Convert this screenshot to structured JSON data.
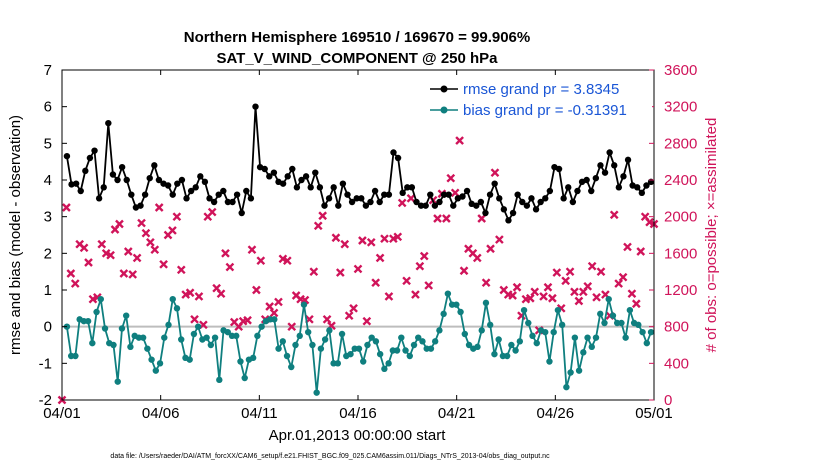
{
  "chart_data": {
    "type": "line",
    "title": "Northern Hemisphere 169510 / 169670 = 99.906%",
    "subtitle": "SAT_V_WIND_COMPONENT @ 250 hPa",
    "xlabel": "Apr.01,2013 00:00:00 start",
    "ylabel_left": "rmse and bias (model - observation)",
    "ylabel_right": "# of obs: o=possible; ×=assimilated",
    "ylim_left": [
      -2,
      7
    ],
    "ylim_right": [
      0,
      3600
    ],
    "xlim": [
      0,
      30
    ],
    "x_ticks": [
      {
        "x": 0,
        "label": "04/01"
      },
      {
        "x": 5,
        "label": "04/06"
      },
      {
        "x": 10,
        "label": "04/11"
      },
      {
        "x": 15,
        "label": "04/16"
      },
      {
        "x": 20,
        "label": "04/21"
      },
      {
        "x": 25,
        "label": "04/26"
      },
      {
        "x": 30,
        "label": "05/01"
      }
    ],
    "y_ticks_left": [
      "-2",
      "-1",
      "0",
      "1",
      "2",
      "3",
      "4",
      "5",
      "6",
      "7"
    ],
    "y_ticks_right": [
      "0",
      "400",
      "800",
      "1200",
      "1600",
      "2000",
      "2400",
      "2800",
      "3200",
      "3600"
    ],
    "footnote": "data file: /Users/raeder/DAI/ATM_forcXX/CAM6_setup/f.e21.FHIST_BGC.f09_025.CAM6assim.011/Diags_NTrS_2013-04/obs_diag_output.nc",
    "colors": {
      "rmse": "#000000",
      "bias": "#0f7f7f",
      "obs": "#d0145a",
      "zero": "#bdbdbd",
      "legend_text": "#1a56d6"
    },
    "series": [
      {
        "name": "rmse",
        "legend": "rmse grand pr = 3.8345",
        "marker": "circle",
        "values": [
          4.65,
          3.88,
          3.9,
          3.7,
          4.25,
          4.6,
          4.8,
          3.5,
          3.8,
          5.55,
          4.15,
          4.0,
          4.35,
          4.0,
          3.6,
          3.25,
          3.3,
          3.6,
          4.05,
          4.4,
          4.0,
          3.9,
          3.85,
          3.6,
          3.9,
          4.0,
          3.5,
          3.7,
          3.8,
          4.1,
          3.95,
          3.5,
          3.4,
          3.6,
          3.7,
          3.4,
          3.4,
          3.6,
          3.1,
          3.7,
          3.5,
          6.0,
          4.35,
          4.3,
          4.1,
          4.2,
          3.95,
          3.9,
          4.1,
          4.3,
          3.8,
          4.0,
          4.1,
          3.8,
          4.2,
          3.8,
          3.3,
          3.5,
          3.8,
          3.3,
          3.9,
          3.6,
          3.4,
          3.5,
          3.5,
          3.3,
          3.4,
          3.7,
          3.4,
          3.6,
          3.6,
          4.75,
          4.6,
          3.65,
          3.8,
          3.8,
          3.4,
          3.3,
          3.3,
          3.6,
          3.3,
          3.4,
          3.6,
          3.6,
          3.3,
          3.5,
          3.55,
          3.7,
          3.35,
          3.3,
          3.4,
          3.1,
          3.6,
          3.9,
          3.5,
          3.2,
          2.9,
          3.1,
          3.6,
          3.4,
          3.3,
          3.5,
          3.2,
          3.4,
          3.5,
          3.7,
          4.35,
          4.3,
          3.5,
          3.8,
          3.4,
          3.7,
          3.95,
          4.0,
          3.7,
          4.05,
          4.4,
          4.2,
          4.75,
          4.4,
          3.8,
          4.1,
          4.55,
          3.85,
          3.8,
          3.65,
          3.85,
          3.95
        ]
      },
      {
        "name": "bias",
        "legend": "bias grand pr = -0.31391",
        "marker": "circle",
        "values": [
          0.0,
          -0.8,
          -0.8,
          0.2,
          0.15,
          0.15,
          -0.45,
          0.4,
          0.75,
          -0.05,
          -0.45,
          -0.5,
          -1.5,
          -0.05,
          0.3,
          -0.55,
          -0.25,
          -0.3,
          -0.3,
          -0.6,
          -0.9,
          -1.2,
          -1.0,
          -0.3,
          0.05,
          0.75,
          0.5,
          -0.35,
          -0.85,
          -0.9,
          -0.2,
          0.0,
          -0.35,
          -0.3,
          -0.5,
          -0.3,
          -1.45,
          -0.1,
          -0.15,
          -0.25,
          -0.25,
          -0.95,
          -1.4,
          -0.9,
          -0.85,
          -0.25,
          0.0,
          0.15,
          0.2,
          0.2,
          -0.6,
          -0.4,
          -0.8,
          -1.1,
          -0.5,
          -0.25,
          0.6,
          -0.15,
          -0.5,
          -1.8,
          -0.6,
          -0.35,
          -0.1,
          -1.0,
          -1.0,
          -0.2,
          -0.8,
          -0.75,
          -0.6,
          -0.6,
          -0.95,
          -0.5,
          -0.3,
          -0.4,
          -0.75,
          -1.15,
          -1.0,
          -0.65,
          -0.65,
          -0.3,
          -0.65,
          -0.8,
          -0.5,
          -0.3,
          -0.4,
          -0.6,
          -0.6,
          -0.4,
          -0.1,
          0.35,
          0.9,
          0.6,
          0.6,
          0.4,
          -0.2,
          -0.5,
          -0.6,
          -0.55,
          -0.1,
          0.65,
          0.05,
          -0.75,
          -0.35,
          -0.8,
          -0.8,
          -0.5,
          -0.65,
          -0.4,
          0.45,
          0.1,
          -0.25,
          -0.45,
          -0.1,
          -0.15,
          -0.95,
          -0.15,
          0.45,
          0.05,
          -1.65,
          -1.25,
          -0.3,
          -1.2,
          -0.7,
          -0.3,
          -0.55,
          -0.3,
          0.35,
          0.1,
          0.75,
          0.3,
          0.1,
          0.1,
          -0.3,
          0.45,
          0.1,
          0.05,
          -0.15,
          -0.45,
          -0.15
        ]
      },
      {
        "name": "obs_assimilated",
        "marker": "x",
        "values": [
          0,
          2100,
          1380,
          1270,
          1700,
          1660,
          1500,
          1100,
          1120,
          1700,
          1600,
          1580,
          1860,
          1920,
          1380,
          1620,
          1370,
          1550,
          1930,
          1820,
          1720,
          1640,
          2100,
          1480,
          1800,
          1850,
          2000,
          1420,
          1150,
          1170,
          880,
          1130,
          820,
          2000,
          2050,
          1220,
          1160,
          1600,
          1450,
          850,
          800,
          860,
          870,
          1640,
          1200,
          1520,
          880,
          1020,
          950,
          1070,
          1540,
          1520,
          800,
          1140,
          1100,
          1090,
          880,
          1400,
          1900,
          2010,
          880,
          810,
          1770,
          1390,
          1700,
          920,
          1000,
          1430,
          1740,
          860,
          1720,
          1280,
          1550,
          1760,
          1130,
          1760,
          1780,
          2150,
          1300,
          2200,
          1150,
          1460,
          1570,
          1250,
          2180,
          1980,
          2250,
          1980,
          2420,
          2260,
          2830,
          1410,
          1650,
          1600,
          1550,
          1980,
          1280,
          1650,
          2480,
          1750,
          1200,
          1150,
          1140,
          1230,
          920,
          1100,
          1110,
          1180,
          760,
          1130,
          1230,
          1110,
          1390,
          1000,
          1300,
          1400,
          1180,
          1080,
          1180,
          1240,
          1460,
          1120,
          1400,
          1150,
          920,
          2020,
          1270,
          1340,
          1670,
          1160,
          1050,
          1620,
          2000,
          1940,
          1920
        ]
      }
    ]
  }
}
